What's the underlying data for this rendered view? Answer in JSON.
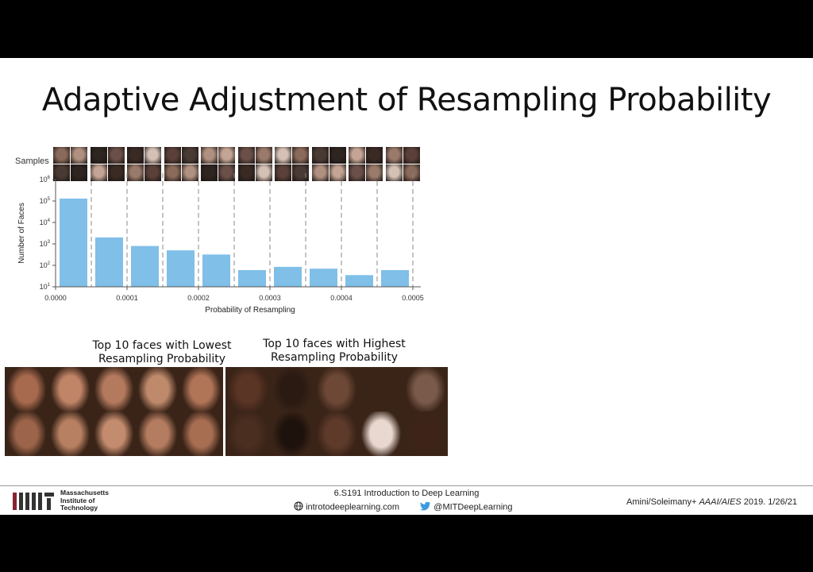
{
  "slide": {
    "title": "Adaptive Adjustment of Resampling Probability",
    "samples_label": "Samples"
  },
  "chart_data": {
    "type": "bar",
    "xlabel": "Probability of Resampling",
    "ylabel": "Number of Faces",
    "y_scale": "log",
    "ylim": [
      10,
      1000000
    ],
    "xlim": [
      0,
      0.0005
    ],
    "grid": "vertical dashed lines at bin edges",
    "x_ticks": [
      "0.0000",
      "0.0001",
      "0.0002",
      "0.0003",
      "0.0004",
      "0.0005"
    ],
    "y_ticks": [
      "10^1",
      "10^2",
      "10^3",
      "10^4",
      "10^5",
      "10^6"
    ],
    "bins": [
      {
        "x_start": 0.0,
        "x_end": 5e-05,
        "value": 130000
      },
      {
        "x_start": 5e-05,
        "x_end": 0.0001,
        "value": 2000
      },
      {
        "x_start": 0.0001,
        "x_end": 0.00015,
        "value": 800
      },
      {
        "x_start": 0.00015,
        "x_end": 0.0002,
        "value": 500
      },
      {
        "x_start": 0.0002,
        "x_end": 0.00025,
        "value": 320
      },
      {
        "x_start": 0.00025,
        "x_end": 0.0003,
        "value": 60
      },
      {
        "x_start": 0.0003,
        "x_end": 0.00035,
        "value": 85
      },
      {
        "x_start": 0.00035,
        "x_end": 0.0004,
        "value": 70
      },
      {
        "x_start": 0.0004,
        "x_end": 0.00045,
        "value": 35
      },
      {
        "x_start": 0.00045,
        "x_end": 0.0005,
        "value": 60
      }
    ],
    "bar_color": "#7fbfe8"
  },
  "captions": {
    "lowest": "Top 10 faces with Lowest Resampling Probability",
    "highest": "Top 10 faces with Highest Resampling Probability"
  },
  "face_tones": {
    "lowest": [
      "#a86a4e",
      "#c08467",
      "#b47a5e",
      "#bf8a6c",
      "#b07457",
      "#9c644a",
      "#b88062",
      "#c48c6e",
      "#b47c60",
      "#a86e52"
    ],
    "highest": [
      "#5a3424",
      "#2a1a12",
      "#6e4836",
      "#3a2418",
      "#7a5a4a",
      "#4a2e20",
      "#1e120c",
      "#5e3a2a",
      "#e8d8d0",
      "#3e2418"
    ]
  },
  "footer": {
    "mit_name": [
      "Massachusetts",
      "Institute of",
      "Technology"
    ],
    "course": "6.S191 Introduction to Deep Learning",
    "website": "introtodeeplearning.com",
    "twitter": "@MITDeepLearning",
    "citation_plain": "Amini/Soleimany+ ",
    "citation_venue": "AAAI/AIES",
    "citation_rest": " 2019.  1/26/21"
  }
}
